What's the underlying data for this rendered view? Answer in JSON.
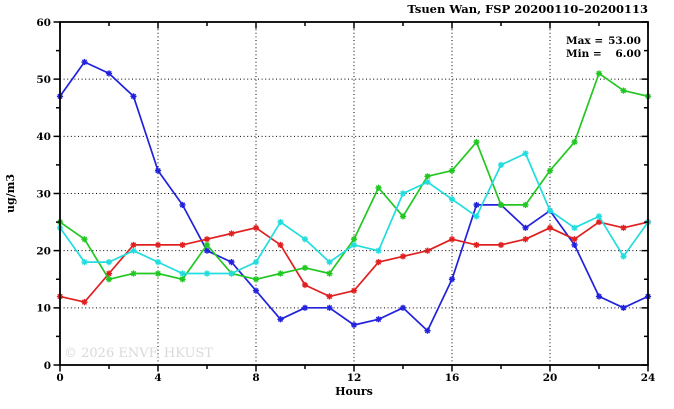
{
  "header": {
    "title": "Tsuen Wan, FSP 20200110–20200113"
  },
  "annotation": {
    "max_label": "Max =",
    "max_value": "53.00",
    "min_label": "Min =",
    "min_value": "6.00"
  },
  "watermark": "© 2026 ENVF, HKUST",
  "chart_data": {
    "type": "line",
    "title": "Tsuen Wan, FSP 20200110–20200113",
    "xlabel": "Hours",
    "ylabel": "ug/m3",
    "xlim": [
      0,
      24
    ],
    "ylim": [
      0,
      60
    ],
    "xticks_major": [
      0,
      4,
      8,
      12,
      16,
      20,
      24
    ],
    "xticks_minor": [
      2,
      6,
      10,
      14,
      18,
      22
    ],
    "yticks_major": [
      0,
      10,
      20,
      30,
      40,
      50,
      60
    ],
    "yticks_minor": [
      5,
      15,
      25,
      35,
      45,
      55
    ],
    "grid_x": [
      4,
      8,
      12,
      16,
      20
    ],
    "grid_y": [
      10,
      20,
      30,
      40,
      50
    ],
    "grid_style": "dotted",
    "legend_position": "none",
    "marker": "asterisk",
    "x": [
      0,
      1,
      2,
      3,
      4,
      5,
      6,
      7,
      8,
      9,
      10,
      11,
      12,
      13,
      14,
      15,
      16,
      17,
      18,
      19,
      20,
      21,
      22,
      23,
      24
    ],
    "series": [
      {
        "name": "blue",
        "color": "#2222dd",
        "values": [
          47,
          53,
          51,
          47,
          34,
          28,
          20,
          18,
          13,
          8,
          10,
          10,
          7,
          8,
          10,
          6,
          15,
          28,
          28,
          24,
          27,
          21,
          12,
          10,
          12
        ]
      },
      {
        "name": "red",
        "color": "#e02020",
        "values": [
          12,
          11,
          16,
          21,
          21,
          21,
          22,
          23,
          24,
          21,
          14,
          12,
          13,
          18,
          19,
          20,
          22,
          21,
          21,
          22,
          24,
          22,
          25,
          24,
          25
        ]
      },
      {
        "name": "green",
        "color": "#22c822",
        "values": [
          25,
          22,
          15,
          16,
          16,
          15,
          21,
          16,
          15,
          16,
          17,
          16,
          22,
          31,
          26,
          33,
          34,
          39,
          28,
          28,
          34,
          39,
          51,
          48,
          47
        ]
      },
      {
        "name": "cyan",
        "color": "#22dddd",
        "values": [
          24,
          18,
          18,
          20,
          18,
          16,
          16,
          16,
          18,
          25,
          22,
          18,
          21,
          20,
          30,
          32,
          29,
          26,
          35,
          37,
          27,
          24,
          26,
          19,
          25
        ]
      }
    ],
    "stats": {
      "max": 53.0,
      "min": 6.0
    }
  }
}
